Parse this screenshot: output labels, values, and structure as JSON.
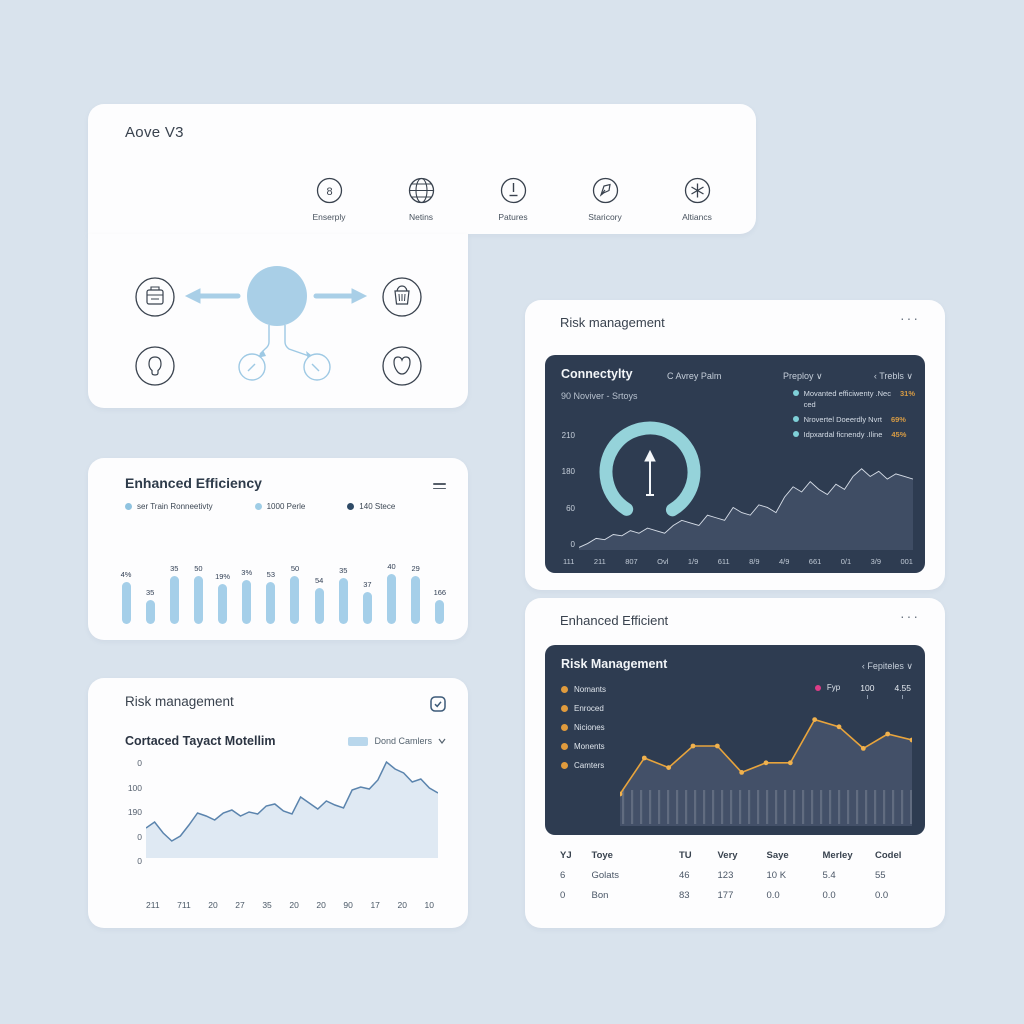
{
  "page": {
    "bg": "#d9e3ed"
  },
  "top_card": {
    "title": "Aove V3",
    "icons": [
      {
        "icon": "circled-8-icon",
        "label": "Enserply"
      },
      {
        "icon": "globe-icon",
        "label": "Netins"
      },
      {
        "icon": "clock-icon",
        "label": "Patures"
      },
      {
        "icon": "pen-icon",
        "label": "Staricory"
      },
      {
        "icon": "asterisk-icon",
        "label": "Altiancs"
      }
    ]
  },
  "efficiency": {
    "title": "Enhanced Efficiency",
    "legend": [
      {
        "label": "ser Train Ronneetivty",
        "color": "#8fc3e0"
      },
      {
        "label": "1000 Perle",
        "color": "#9fcde6"
      },
      {
        "label": "140 Stece",
        "color": "#2e4a66"
      }
    ],
    "chart_data": {
      "type": "bar",
      "labels": [
        "4%",
        "35",
        "35",
        "50",
        "19%",
        "3%",
        "53",
        "50",
        "54",
        "35",
        "37",
        "40",
        "29",
        "166"
      ],
      "values": [
        42,
        24,
        48,
        48,
        40,
        44,
        42,
        48,
        36,
        46,
        32,
        50,
        48,
        24
      ],
      "bar_color": "#a5cfe9"
    }
  },
  "risk_left": {
    "title": "Risk management",
    "chart_title": "Cortaced Tayact Motellim",
    "legend_label": "Dond Camlers",
    "chart_data": {
      "type": "area",
      "y_labels": [
        "0",
        "100",
        "190",
        "0",
        "0"
      ],
      "x_labels": [
        "211",
        "711",
        "20",
        "27",
        "35",
        "20",
        "20",
        "90",
        "17",
        "20",
        "10"
      ],
      "values": [
        30,
        36,
        25,
        17,
        22,
        33,
        45,
        42,
        38,
        45,
        48,
        42,
        46,
        44,
        52,
        54,
        47,
        44,
        61,
        55,
        49,
        57,
        53,
        50,
        68,
        71,
        69,
        78,
        96,
        89,
        85,
        76,
        79,
        70,
        65
      ],
      "line_color": "#5b84ad",
      "fill_color": "#dfe9f3"
    }
  },
  "connectivity_card": {
    "title": "Risk management",
    "menu": "···",
    "panel": {
      "title": "Connectylty",
      "mid_label": "C Avrey Palm",
      "dropdown1": "Preploy ∨",
      "dropdown2": "‹ Trebls ∨",
      "subtitle": "90 Noviver - Srtoys",
      "legend": [
        {
          "label": "Movanted efficiwenty .Nec",
          "value": "31%",
          "sub": "ced"
        },
        {
          "label": "Nrovertel Doeerdly Nvrt",
          "value": "69%",
          "sub": ""
        },
        {
          "label": "Idpxardal ficnendy .Iline",
          "value": "45%",
          "sub": ""
        }
      ],
      "gauge_color": "#95d3da",
      "chart_data": {
        "type": "area",
        "y_labels": [
          "210",
          "180",
          "60",
          "0"
        ],
        "x_labels": [
          "111",
          "211",
          "807",
          "Ovl",
          "1/9",
          "611",
          "8/9",
          "4/9",
          "661",
          "0/1",
          "3/9",
          "001"
        ],
        "values": [
          2,
          5,
          9,
          8,
          12,
          11,
          15,
          13,
          17,
          15,
          13,
          19,
          23,
          21,
          19,
          27,
          25,
          23,
          33,
          29,
          27,
          35,
          33,
          29,
          41,
          49,
          45,
          53,
          47,
          43,
          51,
          47,
          57,
          63,
          57,
          61,
          55,
          59,
          57,
          55
        ],
        "line_color": "#d7dee8",
        "fill_color": "#3f4d64"
      }
    }
  },
  "efficient_card": {
    "title": "Enhanced Efficient",
    "menu": "···",
    "panel": {
      "title": "Risk Management",
      "dropdown": "‹ Fepiteles ∨",
      "legend_left": [
        "Nomants",
        "Enroced",
        "Niciones",
        "Monents",
        "Camters"
      ],
      "legend_left_dot": "#e09b3d",
      "legend_right": {
        "label": "Fyp",
        "dot": "#dd3d87",
        "v1": "100",
        "v2": "4.55"
      },
      "chart_data": {
        "type": "line",
        "values": [
          20,
          50,
          42,
          60,
          60,
          38,
          46,
          46,
          82,
          76,
          58,
          70,
          65
        ],
        "line_color": "#e8a43c",
        "marker_color": "#f0b14e",
        "fill_color": "#46546c"
      }
    },
    "table": {
      "headers": [
        "YJ",
        "Toye",
        "TU",
        "Very",
        "Saye",
        "Merley",
        "Codel"
      ],
      "rows": [
        [
          "6",
          "Golats",
          "46",
          "123",
          "10 K",
          "5.4",
          "55"
        ],
        [
          "0",
          "Bon",
          "83",
          "177",
          "0.0",
          "0.0",
          "0.0"
        ]
      ]
    }
  },
  "colors": {
    "accent_blue": "#a9cfe7",
    "dark_panel": "#2e3c51",
    "teal": "#95d3da",
    "orange": "#d79b44",
    "pink": "#dd3d87"
  }
}
